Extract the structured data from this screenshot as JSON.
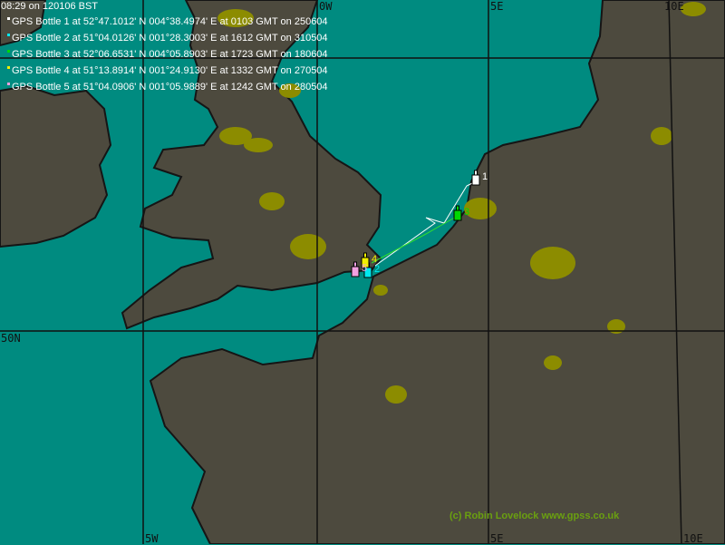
{
  "header": {
    "timestamp": "08:29 on 120106 BST"
  },
  "bottles": [
    {
      "id": "1",
      "label": "GPS Bottle 1 at 52°47.1012' N 004°38.4974' E at 0103 GMT on 250604",
      "color": "#ffffff"
    },
    {
      "id": "2",
      "label": "GPS Bottle 2 at 51°04.0126' N 001°28.3003' E at 1612 GMT on 310504",
      "color": "#00e8f0"
    },
    {
      "id": "3",
      "label": "GPS Bottle 3 at 52°06.6531' N 004°05.8903' E at 1723 GMT on 180604",
      "color": "#00d800"
    },
    {
      "id": "4",
      "label": "GPS Bottle 4 at 51°13.8914' N 001°24.9130' E at 1332 GMT on 270504",
      "color": "#f0f000"
    },
    {
      "id": "5",
      "label": "GPS Bottle 5 at 51°04.0906' N 001°05.9889' E at 1242 GMT on 280504",
      "color": "#f0a0e0"
    }
  ],
  "grid": {
    "top": [
      "0W",
      "5E",
      "10E"
    ],
    "left": [
      "50N"
    ],
    "bottom": [
      "5W",
      "5E",
      "10E"
    ]
  },
  "credit": "(c) Robin Lovelock www.gpss.co.uk",
  "colors": {
    "sea": "#008b80",
    "land": "#4d4a3e",
    "urban": "#8c8c00",
    "coast": "#151515"
  }
}
